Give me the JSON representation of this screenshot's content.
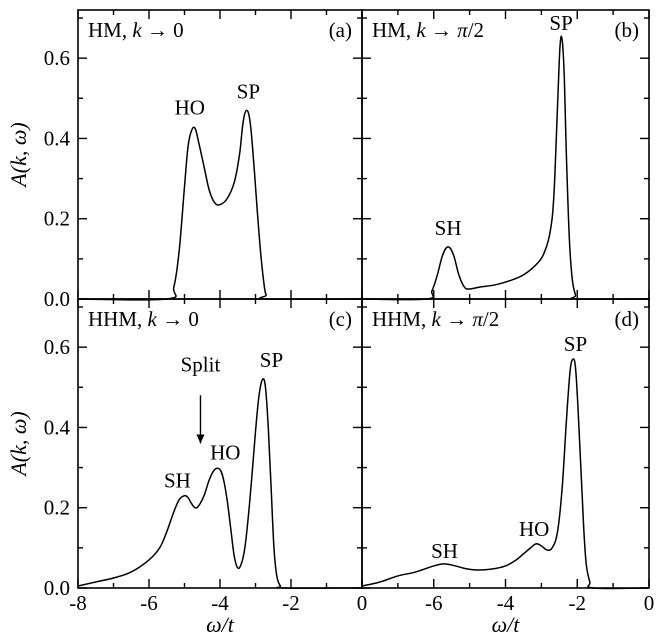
{
  "chart_data": [
    {
      "type": "line",
      "panel": "(a)",
      "title": [
        "HM, ",
        "k",
        " → 0"
      ],
      "xlim": [
        -8,
        0
      ],
      "ylim": [
        0,
        0.72
      ],
      "x_ticks": [],
      "y_ticks": [
        "0.0",
        "0.2",
        "0.4",
        "0.6"
      ],
      "ylabel": "A(k, ω)",
      "xlabel": "",
      "annotations": [
        {
          "text": "HO",
          "x": -4.85,
          "y": 0.46
        },
        {
          "text": "SP",
          "x": -3.2,
          "y": 0.5
        }
      ],
      "series": [
        {
          "x": [
            -8,
            -5.5,
            -5.3,
            -5.15,
            -5.0,
            -4.9,
            -4.8,
            -4.7,
            -4.6,
            -4.45,
            -4.3,
            -4.15,
            -4.0,
            -3.8,
            -3.6,
            -3.45,
            -3.35,
            -3.25,
            -3.15,
            -3.05,
            -2.95,
            -2.85,
            -2.75,
            -2.7,
            -2.65,
            -0.0
          ],
          "y": [
            0.0,
            0.0,
            0.03,
            0.12,
            0.28,
            0.38,
            0.42,
            0.425,
            0.39,
            0.33,
            0.27,
            0.24,
            0.235,
            0.25,
            0.29,
            0.36,
            0.44,
            0.47,
            0.44,
            0.34,
            0.22,
            0.11,
            0.03,
            0.01,
            0.0,
            0.0
          ]
        }
      ]
    },
    {
      "type": "line",
      "panel": "(b)",
      "title": [
        "HM, ",
        "k",
        " → ",
        "π",
        "/2"
      ],
      "xlim": [
        -8,
        0
      ],
      "ylim": [
        0,
        0.72
      ],
      "x_ticks": [],
      "y_ticks": [],
      "annotations": [
        {
          "text": "SH",
          "x": -5.6,
          "y": 0.16
        },
        {
          "text": "SP",
          "x": -2.45,
          "y": 0.67
        }
      ],
      "series": [
        {
          "x": [
            -8,
            -6.2,
            -6.05,
            -5.9,
            -5.75,
            -5.6,
            -5.45,
            -5.3,
            -5.15,
            -5.0,
            -4.7,
            -4.3,
            -3.9,
            -3.5,
            -3.1,
            -2.9,
            -2.75,
            -2.65,
            -2.55,
            -2.48,
            -2.42,
            -2.36,
            -2.3,
            -2.22,
            -2.14,
            -2.05,
            -2.0,
            0
          ],
          "y": [
            0.0,
            0.0,
            0.02,
            0.06,
            0.11,
            0.13,
            0.11,
            0.06,
            0.03,
            0.025,
            0.03,
            0.035,
            0.045,
            0.06,
            0.09,
            0.12,
            0.17,
            0.26,
            0.48,
            0.63,
            0.645,
            0.55,
            0.35,
            0.15,
            0.05,
            0.01,
            0.0,
            0.0
          ]
        }
      ]
    },
    {
      "type": "line",
      "panel": "(c)",
      "title": [
        "HHM, ",
        "k",
        " → 0"
      ],
      "xlim": [
        -8,
        0
      ],
      "ylim": [
        0,
        0.72
      ],
      "x_ticks": [
        "-8",
        "-6",
        "-4",
        "-2"
      ],
      "y_ticks": [
        "0.0",
        "0.2",
        "0.4",
        "0.6"
      ],
      "ylabel": "A(k, ω)",
      "xlabel": "ω/t",
      "annotations": [
        {
          "text": "Split",
          "x": -4.55,
          "y": 0.54
        },
        {
          "text": "SH",
          "x": -5.2,
          "y": 0.25
        },
        {
          "text": "HO",
          "x": -3.85,
          "y": 0.32
        },
        {
          "text": "SP",
          "x": -2.55,
          "y": 0.55
        }
      ],
      "arrow": {
        "x": -4.55,
        "y_from": 0.48,
        "y_to": 0.36
      },
      "series": [
        {
          "x": [
            -8,
            -7.5,
            -7.0,
            -6.5,
            -6.0,
            -5.7,
            -5.5,
            -5.3,
            -5.15,
            -5.0,
            -4.9,
            -4.8,
            -4.7,
            -4.6,
            -4.45,
            -4.3,
            -4.15,
            -4.0,
            -3.9,
            -3.8,
            -3.7,
            -3.6,
            -3.5,
            -3.4,
            -3.3,
            -3.2,
            -3.1,
            -3.0,
            -2.9,
            -2.8,
            -2.72,
            -2.64,
            -2.56,
            -2.48,
            -2.4,
            -2.3,
            -2.2,
            0
          ],
          "y": [
            0.005,
            0.015,
            0.025,
            0.04,
            0.07,
            0.1,
            0.14,
            0.19,
            0.22,
            0.23,
            0.225,
            0.21,
            0.2,
            0.205,
            0.23,
            0.27,
            0.295,
            0.295,
            0.27,
            0.22,
            0.15,
            0.08,
            0.05,
            0.06,
            0.1,
            0.18,
            0.28,
            0.39,
            0.48,
            0.52,
            0.5,
            0.4,
            0.25,
            0.1,
            0.03,
            0.005,
            0.0,
            0.0
          ]
        }
      ]
    },
    {
      "type": "line",
      "panel": "(d)",
      "title": [
        "HHM, ",
        "k",
        " → ",
        "π",
        "/2"
      ],
      "xlim": [
        -8,
        0
      ],
      "ylim": [
        0,
        0.72
      ],
      "x_ticks": [
        "0",
        "-6",
        "-4",
        "-2",
        "0"
      ],
      "y_ticks": [],
      "xlabel": "ω/t",
      "annotations": [
        {
          "text": "SH",
          "x": -5.7,
          "y": 0.075
        },
        {
          "text": "HO",
          "x": -3.2,
          "y": 0.13
        },
        {
          "text": "SP",
          "x": -2.05,
          "y": 0.59
        }
      ],
      "series": [
        {
          "x": [
            -8,
            -7.5,
            -7.0,
            -6.5,
            -6.0,
            -5.7,
            -5.4,
            -5.1,
            -4.8,
            -4.4,
            -4.0,
            -3.7,
            -3.5,
            -3.3,
            -3.15,
            -3.0,
            -2.85,
            -2.7,
            -2.55,
            -2.42,
            -2.3,
            -2.2,
            -2.12,
            -2.05,
            -1.98,
            -1.9,
            -1.82,
            -1.75,
            -1.65,
            -1.55,
            0
          ],
          "y": [
            0.005,
            0.015,
            0.03,
            0.04,
            0.055,
            0.06,
            0.055,
            0.048,
            0.045,
            0.047,
            0.055,
            0.07,
            0.085,
            0.1,
            0.11,
            0.105,
            0.095,
            0.1,
            0.14,
            0.25,
            0.42,
            0.54,
            0.57,
            0.55,
            0.45,
            0.3,
            0.15,
            0.06,
            0.015,
            0.0,
            0.0
          ]
        }
      ]
    }
  ]
}
